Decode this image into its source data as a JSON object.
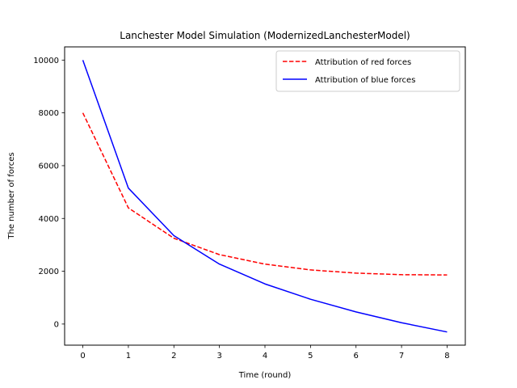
{
  "chart_data": {
    "type": "line",
    "title": "Lanchester Model Simulation (ModernizedLanchesterModel)",
    "xlabel": "Time (round)",
    "ylabel": "The number of forces",
    "x": [
      0,
      1,
      2,
      3,
      4,
      5,
      6,
      7,
      8
    ],
    "xlim": [
      -0.4,
      8.4
    ],
    "ylim": [
      -800,
      10500
    ],
    "xticks": [
      0,
      1,
      2,
      3,
      4,
      5,
      6,
      7,
      8
    ],
    "yticks": [
      0,
      2000,
      4000,
      6000,
      8000,
      10000
    ],
    "grid": false,
    "legend": "top-right",
    "series": [
      {
        "name": "Attribution of red forces",
        "color": "#ff0000",
        "style": "dashed",
        "values": [
          8000,
          4400,
          3250,
          2630,
          2270,
          2050,
          1930,
          1870,
          1860
        ]
      },
      {
        "name": "Attribution of blue forces",
        "color": "#0000ff",
        "style": "solid",
        "values": [
          10000,
          5150,
          3350,
          2270,
          1520,
          940,
          460,
          50,
          -300
        ]
      }
    ]
  }
}
